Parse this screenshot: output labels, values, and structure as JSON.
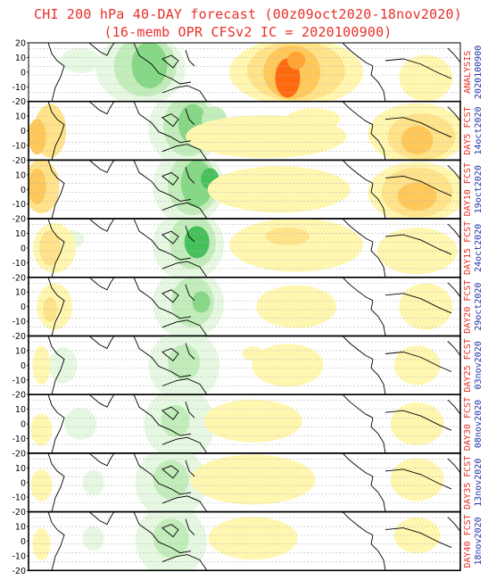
{
  "title": {
    "line1": "CHI 200 hPa 40-DAY forecast (00z09oct2020-18nov2020)",
    "line2": "(16-memb OPR CFSv2 IC = 2020100900)"
  },
  "colors": {
    "title": "#e8302a",
    "label_red": "#e8302a",
    "label_blue": "#2233aa",
    "positive": [
      "#fff7b0",
      "#ffe38a",
      "#ffc85a",
      "#ffa430",
      "#ff6a10"
    ],
    "negative": [
      "#e6f8e2",
      "#c2edbb",
      "#86d886",
      "#45c05a",
      "#1a9a3a"
    ]
  },
  "y_ticks": [
    20,
    10,
    0,
    -10,
    -20
  ],
  "panels": [
    {
      "label": "ANALYSIS",
      "date": "2020100900"
    },
    {
      "label": "DAY5 FCST",
      "date": "14oct2020"
    },
    {
      "label": "DAY10 FCST",
      "date": "19oct2020"
    },
    {
      "label": "DAY15 FCST",
      "date": "24oct2020"
    },
    {
      "label": "DAY20 FCST",
      "date": "29oct2020"
    },
    {
      "label": "DAY25 FCST",
      "date": "03nov2020"
    },
    {
      "label": "DAY30 FCST",
      "date": "08nov2020"
    },
    {
      "label": "DAY35 FCST",
      "date": "13nov2020"
    },
    {
      "label": "DAY40 FCST",
      "date": "18nov2020"
    }
  ]
}
